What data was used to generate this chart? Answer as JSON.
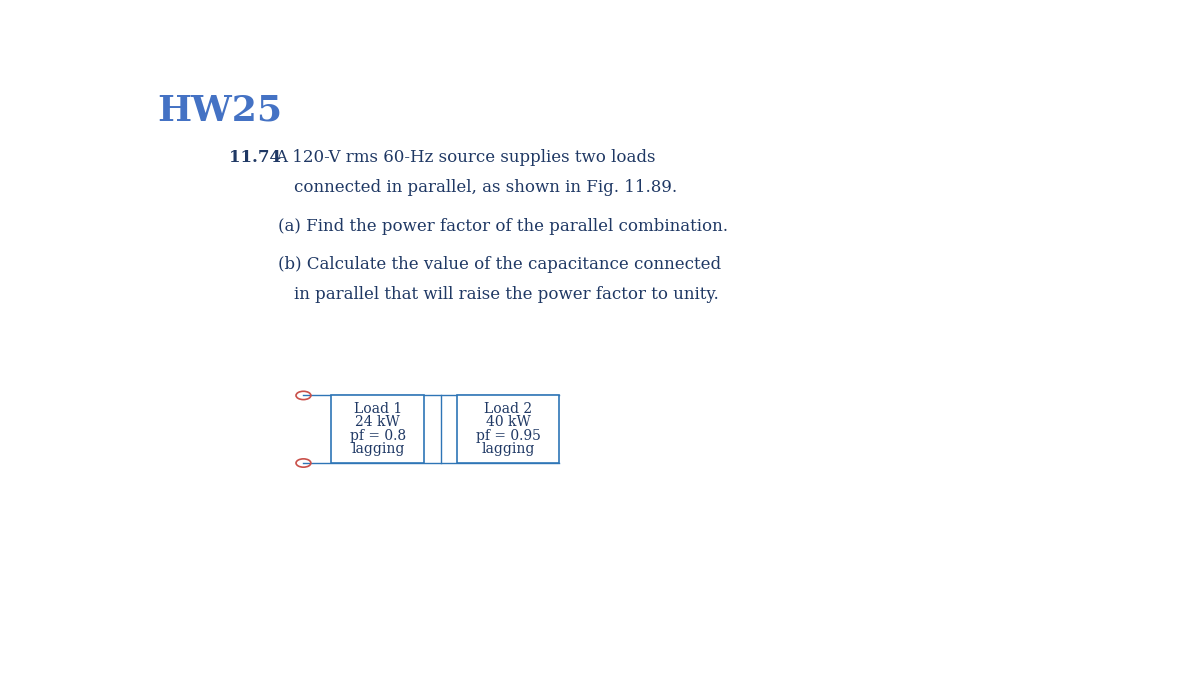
{
  "title": "HW25",
  "title_color": "#4472C4",
  "title_fontsize": 26,
  "problem_number": "11.74",
  "problem_text_line1": "A 120-V rms 60-Hz source supplies two loads",
  "problem_text_line2": "connected in parallel, as shown in Fig. 11.89.",
  "part_a": "(a) Find the power factor of the parallel combination.",
  "part_b_line1": "(b) Calculate the value of the capacitance connected",
  "part_b_line2": "in parallel that will raise the power factor to unity.",
  "load1_lines": [
    "Load 1",
    "24 kW",
    "pf = 0.8",
    "lagging"
  ],
  "load2_lines": [
    "Load 2",
    "40 kW",
    "pf = 0.95",
    "lagging"
  ],
  "box_edge_color": "#2E75B6",
  "line_color": "#2E75B6",
  "circle_color": "#C9504A",
  "text_color": "#1F3864",
  "background_color": "#FFFFFF",
  "font_family": "DejaVu Serif"
}
